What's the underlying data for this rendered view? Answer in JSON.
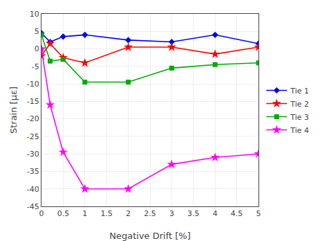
{
  "chart_data": {
    "type": "line",
    "x": [
      0,
      0.2,
      0.5,
      1.0,
      2.0,
      3.0,
      4.0,
      5.0
    ],
    "series": [
      {
        "name": "Tie 1",
        "color": "#0000FF",
        "marker": "diamond",
        "values": [
          4.5,
          2.0,
          3.5,
          4.0,
          2.5,
          2.0,
          4.0,
          1.5
        ]
      },
      {
        "name": "Tie 2",
        "color": "#FF0000",
        "marker": "star",
        "values": [
          -2.0,
          1.5,
          -2.5,
          -4.0,
          0.5,
          0.5,
          -1.5,
          0.5
        ]
      },
      {
        "name": "Tie 3",
        "color": "#00AA00",
        "marker": "square",
        "values": [
          4.0,
          -3.5,
          -3.0,
          -9.5,
          -9.5,
          -5.5,
          -4.5,
          -4.0
        ]
      },
      {
        "name": "Tie 4",
        "color": "#FF00FF",
        "marker": "star",
        "values": [
          0.0,
          -16.0,
          -29.5,
          -40.0,
          -40.0,
          -33.0,
          -31.0,
          -30.0
        ]
      }
    ],
    "xlabel": "Negative Drift [%]",
    "ylabel": "Strain [με]",
    "xlim": [
      0,
      5
    ],
    "ylim": [
      -45,
      10
    ],
    "xticks": [
      0,
      0.5,
      1,
      1.5,
      2,
      2.5,
      3,
      3.5,
      4,
      4.5,
      5
    ],
    "yticks": [
      -45,
      -40,
      -35,
      -30,
      -25,
      -20,
      -15,
      -10,
      -5,
      0,
      5,
      10
    ],
    "grid": true,
    "legend": "center right"
  }
}
